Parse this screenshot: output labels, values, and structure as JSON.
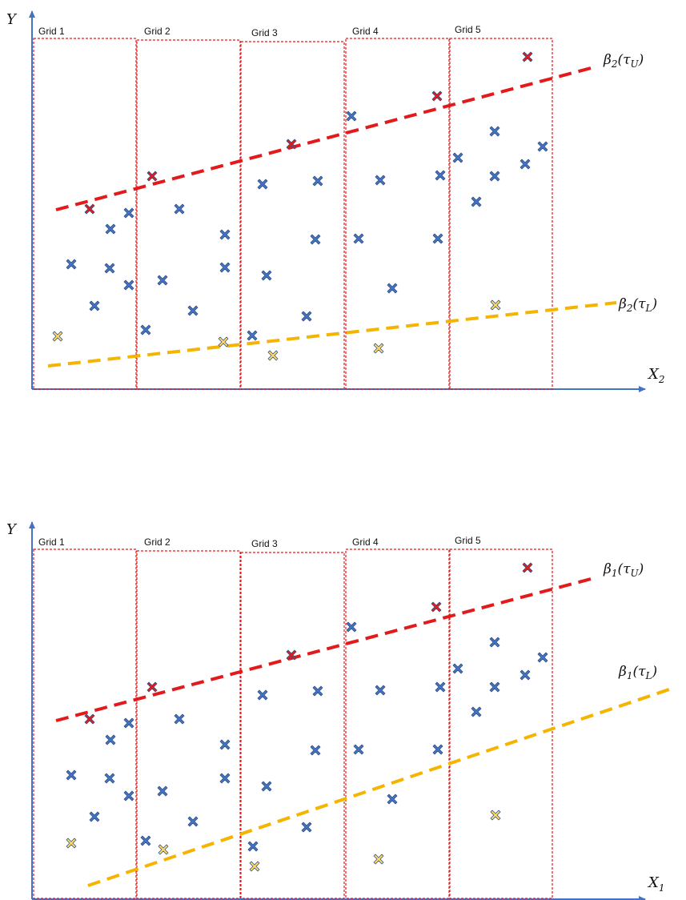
{
  "colors": {
    "axis": "#4472c4",
    "grid_border": "#e31a1c",
    "upper_line": "#e31a1c",
    "lower_line": "#f4b400",
    "point_blue": "#4472c4",
    "point_red": "#e31a1c",
    "point_yellow": "#ffd966"
  },
  "panels": [
    {
      "id": "top",
      "y_axis_label": "Y",
      "x_axis_label": {
        "base": "X",
        "sub": "2"
      },
      "grid_labels": [
        "Grid 1",
        "Grid 2",
        "Grid 3",
        "Grid 4",
        "Grid 5"
      ],
      "upper_line_label": {
        "base": "β",
        "sub": "2",
        "arg": "(τ",
        "argsub": "U",
        "close": ")"
      },
      "lower_line_label": {
        "base": "β",
        "sub": "2",
        "arg": "(τ",
        "argsub": "L",
        "close": ")"
      }
    },
    {
      "id": "bottom",
      "y_axis_label": "Y",
      "x_axis_label": {
        "base": "X",
        "sub": "1"
      },
      "grid_labels": [
        "Grid 1",
        "Grid 2",
        "Grid 3",
        "Grid 4",
        "Grid 5"
      ],
      "upper_line_label": {
        "base": "β",
        "sub": "1",
        "arg": "(τ",
        "argsub": "U",
        "close": ")"
      },
      "lower_line_label": {
        "base": "β",
        "sub": "1",
        "arg": "(τ",
        "argsub": "L",
        "close": ")"
      }
    }
  ]
}
